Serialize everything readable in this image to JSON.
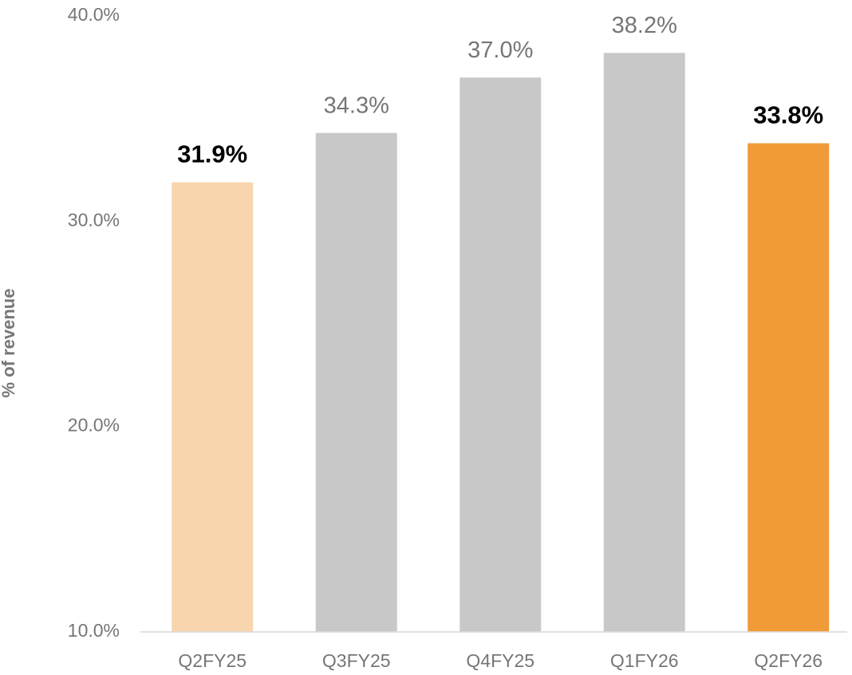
{
  "chart_data": {
    "type": "bar",
    "y_label": "% of revenue",
    "categories": [
      "Q2FY25",
      "Q3FY25",
      "Q4FY25",
      "Q1FY26",
      "Q2FY26"
    ],
    "values": [
      31.9,
      34.3,
      37.0,
      38.2,
      33.8
    ],
    "value_labels": [
      "31.9%",
      "34.3%",
      "37.0%",
      "38.2%",
      "33.8%"
    ],
    "colors": [
      "#f9d5ad",
      "#c8c8c8",
      "#c8c8c8",
      "#c8c8c8",
      "#f09b38"
    ],
    "bold_labels": [
      true,
      false,
      false,
      false,
      true
    ],
    "ylim": [
      10,
      40
    ],
    "yticks": [
      {
        "value": 10,
        "label": "10.0%"
      },
      {
        "value": 20,
        "label": "20.0%"
      },
      {
        "value": 30,
        "label": "30.0%"
      },
      {
        "value": 40,
        "label": "40.0%"
      }
    ],
    "grid": false
  }
}
